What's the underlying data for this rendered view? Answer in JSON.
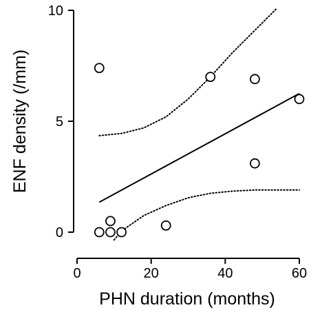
{
  "chart_data": {
    "type": "scatter",
    "title": "",
    "xlabel": "PHN duration (months)",
    "ylabel": "ENF density (/mm)",
    "xlim": [
      0,
      60
    ],
    "ylim": [
      0,
      10
    ],
    "x_ticks": [
      0,
      20,
      40,
      60
    ],
    "y_ticks": [
      0,
      5,
      10
    ],
    "grid": false,
    "legend": "none",
    "series": [
      {
        "type": "scatter",
        "marker": "open-circle",
        "points": [
          {
            "x": 6,
            "y": 7.4
          },
          {
            "x": 36,
            "y": 7.0
          },
          {
            "x": 48,
            "y": 6.9
          },
          {
            "x": 60,
            "y": 6.0
          },
          {
            "x": 48,
            "y": 3.1
          },
          {
            "x": 24,
            "y": 0.3
          },
          {
            "x": 9,
            "y": 0.5
          },
          {
            "x": 6,
            "y": 0.0
          },
          {
            "x": 9,
            "y": 0.0
          },
          {
            "x": 12,
            "y": 0.0
          }
        ]
      },
      {
        "type": "line",
        "style": "solid",
        "points": [
          {
            "x": 6,
            "y": 1.35
          },
          {
            "x": 60,
            "y": 6.25
          }
        ]
      },
      {
        "type": "line",
        "style": "dotted",
        "points": [
          {
            "x": 6,
            "y": 4.35
          },
          {
            "x": 12,
            "y": 4.45
          },
          {
            "x": 18,
            "y": 4.7
          },
          {
            "x": 24,
            "y": 5.2
          },
          {
            "x": 30,
            "y": 6.0
          },
          {
            "x": 36,
            "y": 7.0
          },
          {
            "x": 42,
            "y": 8.1
          },
          {
            "x": 48,
            "y": 9.1
          },
          {
            "x": 54,
            "y": 10.1
          }
        ]
      },
      {
        "type": "line",
        "style": "dotted",
        "points": [
          {
            "x": 10,
            "y": -0.35
          },
          {
            "x": 12,
            "y": 0.05
          },
          {
            "x": 18,
            "y": 0.75
          },
          {
            "x": 24,
            "y": 1.2
          },
          {
            "x": 30,
            "y": 1.55
          },
          {
            "x": 36,
            "y": 1.75
          },
          {
            "x": 42,
            "y": 1.85
          },
          {
            "x": 48,
            "y": 1.9
          },
          {
            "x": 54,
            "y": 1.9
          },
          {
            "x": 60,
            "y": 1.9
          }
        ]
      }
    ]
  }
}
